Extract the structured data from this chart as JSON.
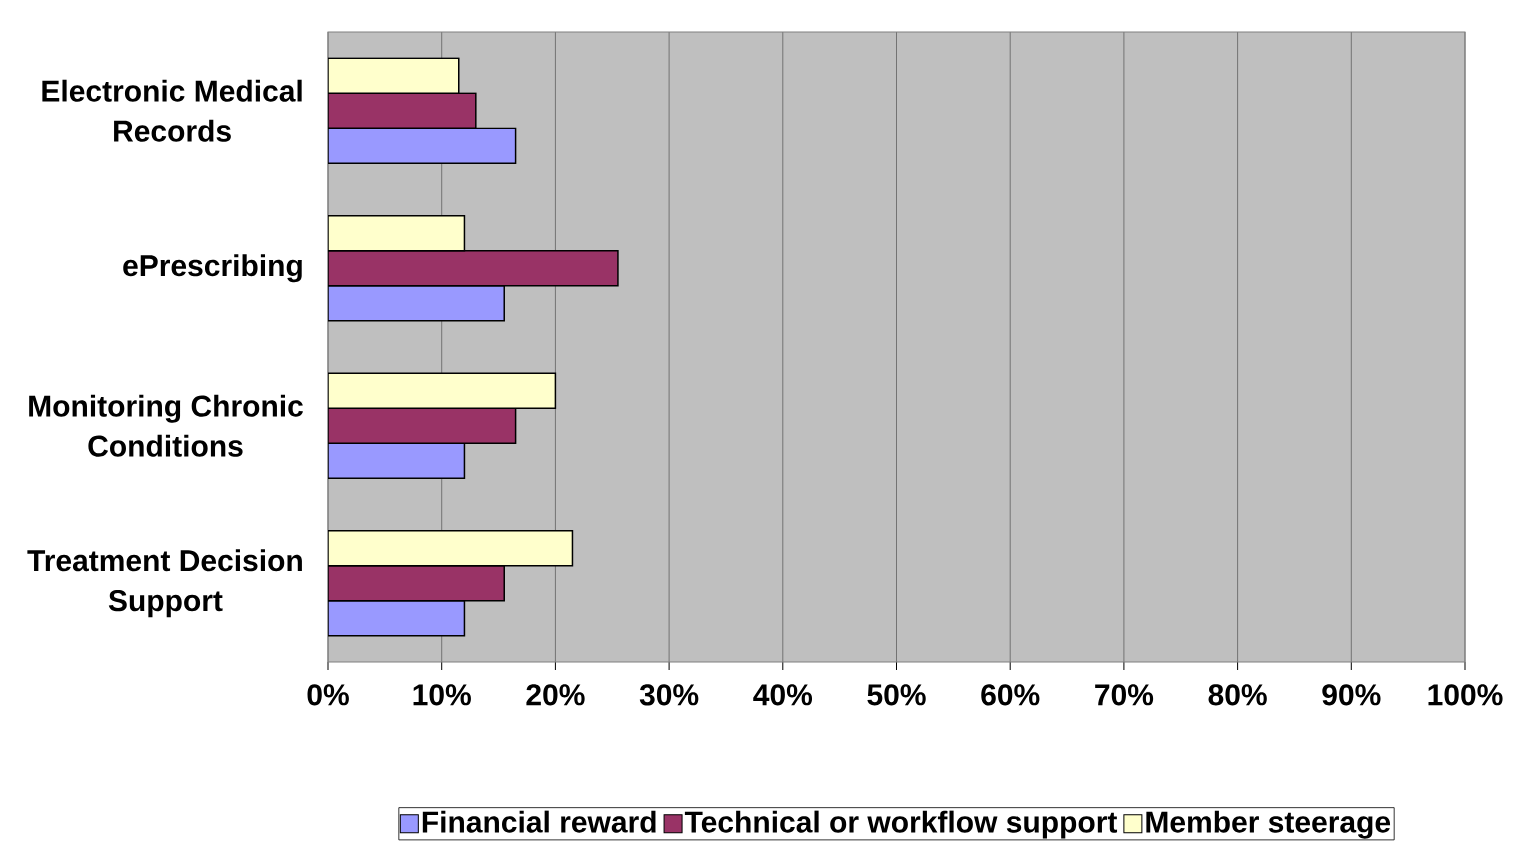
{
  "chart_data": {
    "type": "bar",
    "orientation": "horizontal",
    "categories": [
      "Electronic Medical Records",
      "ePrescribing",
      "Monitoring Chronic Conditions",
      "Treatment Decision Support"
    ],
    "series": [
      {
        "name": "Financial reward",
        "color": "#9999ff",
        "values": [
          16.5,
          15.5,
          12,
          12
        ]
      },
      {
        "name": "Technical or workflow support",
        "color": "#993366",
        "values": [
          13,
          25.5,
          16.5,
          15.5
        ]
      },
      {
        "name": "Member steerage",
        "color": "#ffffcc",
        "values": [
          11.5,
          12,
          20,
          21.5
        ]
      }
    ],
    "xlim": [
      0,
      100
    ],
    "xticks": [
      {
        "value": 0,
        "label": "0%"
      },
      {
        "value": 10,
        "label": "10%"
      },
      {
        "value": 20,
        "label": "20%"
      },
      {
        "value": 30,
        "label": "30%"
      },
      {
        "value": 40,
        "label": "40%"
      },
      {
        "value": 50,
        "label": "50%"
      },
      {
        "value": 60,
        "label": "60%"
      },
      {
        "value": 70,
        "label": "70%"
      },
      {
        "value": 80,
        "label": "80%"
      },
      {
        "value": 90,
        "label": "90%"
      },
      {
        "value": 100,
        "label": "100%"
      }
    ],
    "grid": "x",
    "legend": "bottom"
  }
}
